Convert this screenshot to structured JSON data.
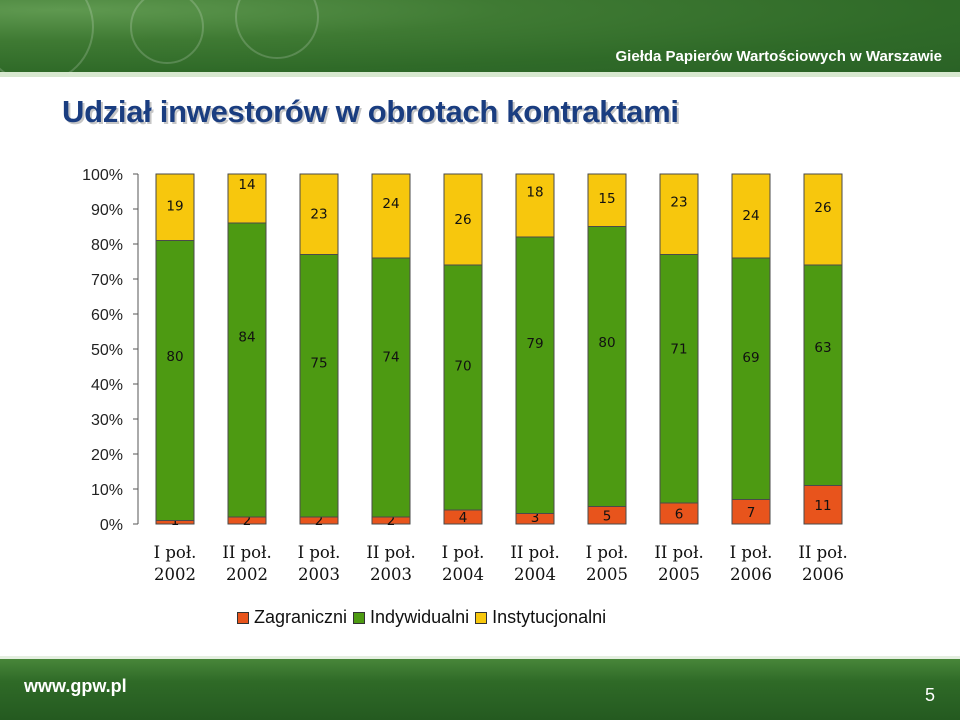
{
  "header": {
    "exchange_name": "Giełda Papierów Wartościowych w Warszawie",
    "title": "Udział inwestorów w obrotach kontraktami"
  },
  "footer": {
    "website": "www.gpw.pl",
    "page_number": "5"
  },
  "colors": {
    "zagraniczni": "#e8541c",
    "indywidualni": "#4d9a12",
    "instytucjonalni": "#f7c70d",
    "banner": "#2f6a28"
  },
  "chart_data": {
    "type": "bar",
    "stacked": "percent",
    "categories": [
      [
        "I poł.",
        "2002"
      ],
      [
        "II poł.",
        "2002"
      ],
      [
        "I poł.",
        "2003"
      ],
      [
        "II poł.",
        "2003"
      ],
      [
        "I poł.",
        "2004"
      ],
      [
        "II poł.",
        "2004"
      ],
      [
        "I poł.",
        "2005"
      ],
      [
        "II poł.",
        "2005"
      ],
      [
        "I poł.",
        "2006"
      ],
      [
        "II poł.",
        "2006"
      ]
    ],
    "series": [
      {
        "name": "Zagraniczni",
        "values": [
          1,
          2,
          2,
          2,
          4,
          3,
          5,
          6,
          7,
          11
        ]
      },
      {
        "name": "Indywidualni",
        "values": [
          80,
          84,
          75,
          74,
          70,
          79,
          80,
          71,
          69,
          63
        ]
      },
      {
        "name": "Instytucjonalni",
        "values": [
          19,
          14,
          23,
          24,
          26,
          18,
          15,
          23,
          24,
          26
        ]
      }
    ],
    "yticks": [
      "0%",
      "10%",
      "20%",
      "30%",
      "40%",
      "50%",
      "60%",
      "70%",
      "80%",
      "90%",
      "100%"
    ],
    "ylim": [
      0,
      100
    ],
    "grid": false,
    "legend": "bottom"
  }
}
